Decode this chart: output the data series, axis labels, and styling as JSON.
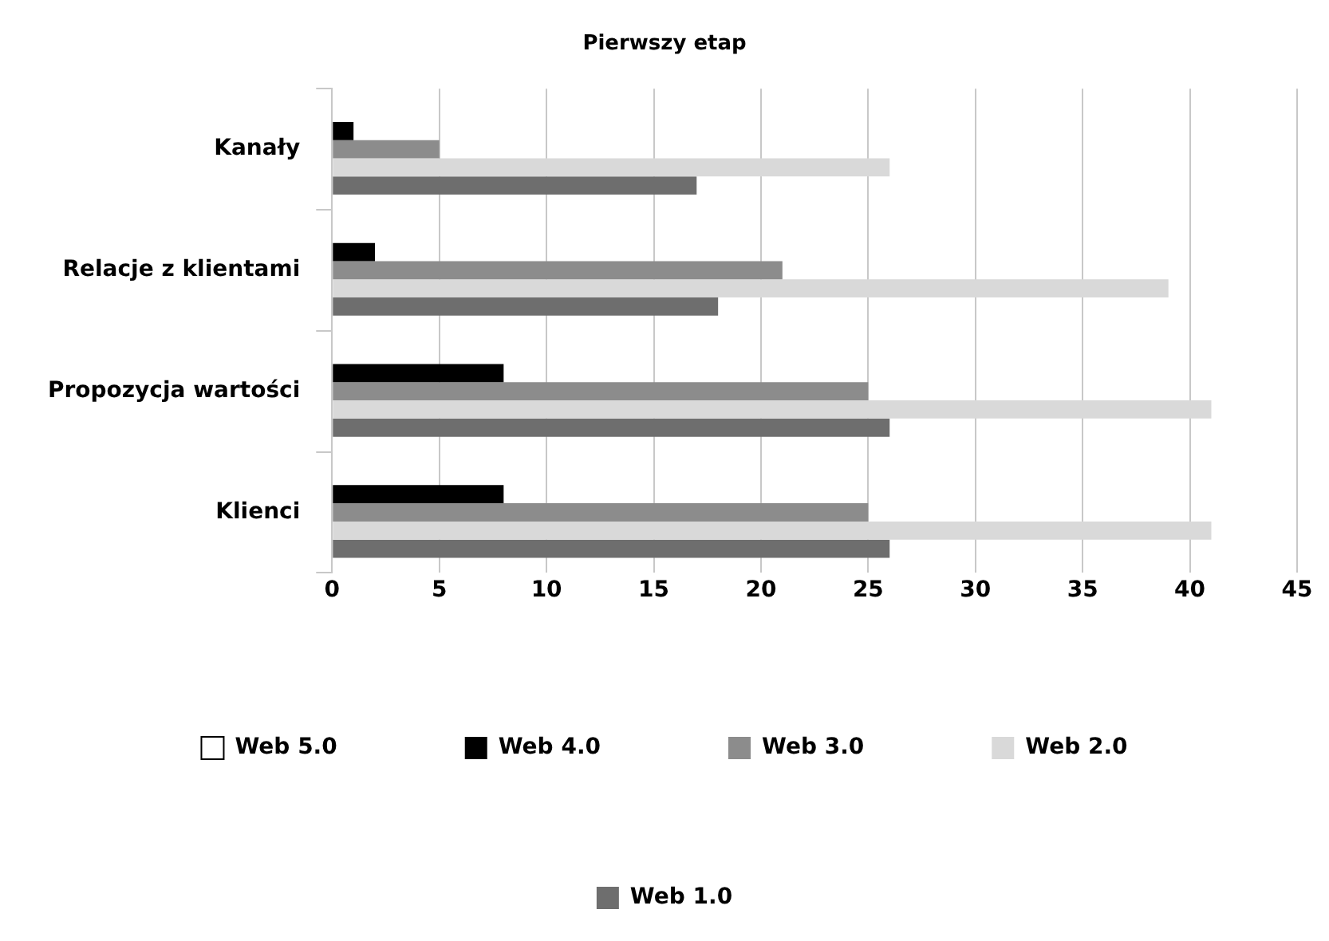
{
  "chart_data": {
    "type": "bar",
    "orientation": "horizontal",
    "title": "Pierwszy etap",
    "categories": [
      "Kanały",
      "Relacje z klientami",
      "Propozycja wartości",
      "Klienci"
    ],
    "series": [
      {
        "name": "Web 5.0",
        "color": "#ffffff",
        "values": [
          0,
          0,
          0,
          0
        ]
      },
      {
        "name": "Web 4.0",
        "color": "#000000",
        "values": [
          1,
          2,
          8,
          8
        ]
      },
      {
        "name": "Web 3.0",
        "color": "#8c8c8c",
        "values": [
          5,
          21,
          25,
          25
        ]
      },
      {
        "name": "Web 2.0",
        "color": "#d9d9d9",
        "values": [
          26,
          39,
          41,
          41
        ]
      },
      {
        "name": "Web 1.0",
        "color": "#6e6e6e",
        "values": [
          17,
          18,
          26,
          26
        ]
      }
    ],
    "xlim": [
      0,
      45
    ],
    "xticks": [
      0,
      5,
      10,
      15,
      20,
      25,
      30,
      35,
      40,
      45
    ],
    "grid": "x",
    "legend": "bottom"
  }
}
